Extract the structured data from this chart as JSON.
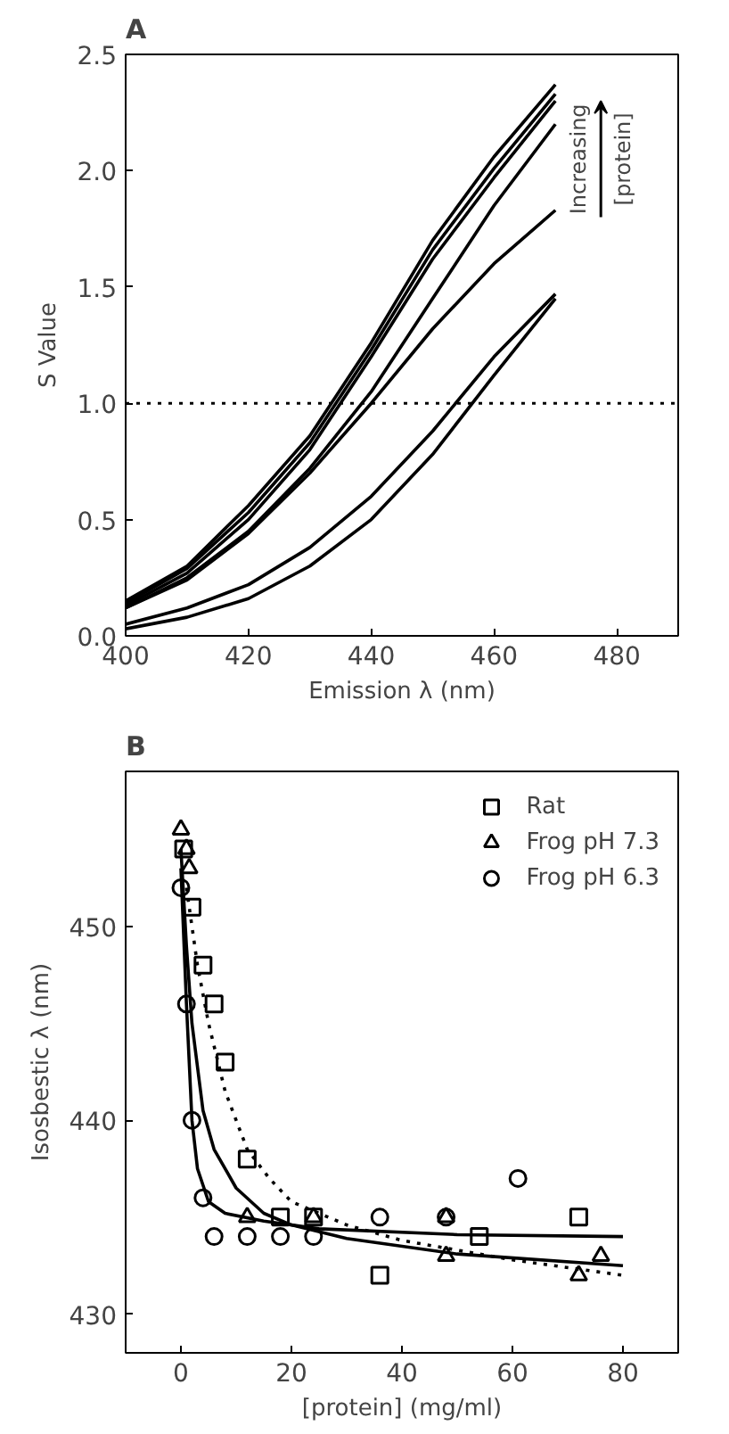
{
  "chart_data": [
    {
      "type": "line",
      "title": "A",
      "xlabel": "Emission λ (nm)",
      "ylabel": "S Value",
      "xlim": [
        400,
        490
      ],
      "ylim": [
        0,
        2.5
      ],
      "xticks": [
        400,
        420,
        440,
        460,
        480
      ],
      "yticks": [
        {
          "value": 0,
          "label": "0.0"
        },
        0.5,
        {
          "value": 1,
          "label": "1.0"
        },
        1.5,
        {
          "value": 2,
          "label": "2.0"
        },
        2.5
      ],
      "grid": false,
      "legend": false,
      "marker": "none",
      "line_style": "solid",
      "x": [
        400,
        410,
        420,
        430,
        440,
        450,
        460,
        470
      ],
      "series": [
        {
          "color": "#000000",
          "values": [
            0.15,
            0.3,
            0.56,
            0.86,
            1.26,
            1.7,
            2.06,
            2.37
          ]
        },
        {
          "color": "#000000",
          "values": [
            0.14,
            0.29,
            0.53,
            0.83,
            1.23,
            1.66,
            2.01,
            2.33
          ]
        },
        {
          "color": "#000000",
          "values": [
            0.13,
            0.27,
            0.5,
            0.8,
            1.2,
            1.62,
            1.97,
            2.3
          ]
        },
        {
          "color": "#000000",
          "values": [
            0.12,
            0.25,
            0.45,
            0.72,
            1.05,
            1.45,
            1.85,
            2.2
          ]
        },
        {
          "color": "#000000",
          "values": [
            0.12,
            0.24,
            0.44,
            0.7,
            1.0,
            1.32,
            1.6,
            1.83
          ]
        },
        {
          "color": "#000000",
          "values": [
            0.05,
            0.12,
            0.22,
            0.38,
            0.6,
            0.88,
            1.2,
            1.47
          ]
        },
        {
          "color": "#000000",
          "values": [
            0.03,
            0.08,
            0.16,
            0.3,
            0.5,
            0.78,
            1.12,
            1.45
          ]
        }
      ],
      "ref_lines": [
        {
          "axis": "y",
          "value": 1,
          "line_style": "dotted",
          "color": "#000000"
        }
      ],
      "annotations": [
        "Increasing",
        "[protein]"
      ]
    },
    {
      "type": "scatter",
      "title": "B",
      "xlabel": "[protein] (mg/ml)",
      "ylabel": "Isosbestic λ (nm)",
      "xlim": [
        -10,
        90
      ],
      "ylim": [
        428,
        458
      ],
      "xticks": [
        0,
        20,
        40,
        60,
        80
      ],
      "yticks": [
        430,
        440,
        450
      ],
      "grid": false,
      "legend": "top right",
      "series": [
        {
          "name": "Rat",
          "color": "#000000",
          "marker": "square",
          "x": [
            0.5,
            2,
            4,
            6,
            8,
            12,
            18,
            24,
            36,
            54,
            72
          ],
          "values": [
            454,
            451,
            448,
            446,
            443,
            438,
            435,
            435,
            432,
            434,
            435
          ]
        },
        {
          "name": "Frog pH 7.3",
          "color": "#000000",
          "marker": "triangle",
          "x": [
            0,
            1,
            1.5,
            12,
            24,
            48,
            48,
            72,
            76
          ],
          "values": [
            455,
            454,
            453,
            435,
            435,
            433,
            435,
            432,
            433
          ]
        },
        {
          "name": "Frog pH 6.3",
          "color": "#000000",
          "marker": "circle",
          "x": [
            0,
            1,
            2,
            4,
            6,
            12,
            18,
            24,
            36,
            48,
            61
          ],
          "values": [
            452,
            446,
            440,
            436,
            434,
            434,
            434,
            434,
            435,
            435,
            437
          ]
        },
        {
          "type": "line",
          "color": "#000000",
          "marker": "none",
          "line_style": "solid",
          "x": [
            0,
            1,
            2,
            3,
            5,
            8,
            15,
            25,
            50,
            80
          ],
          "values": [
            453,
            446,
            440,
            437.5,
            435.8,
            435.2,
            434.8,
            434.4,
            434.1,
            434
          ]
        },
        {
          "type": "line",
          "color": "#000000",
          "marker": "none",
          "line_style": "solid",
          "x": [
            0,
            1,
            2,
            4,
            6,
            10,
            15,
            20,
            30,
            50,
            80
          ],
          "values": [
            454,
            449,
            445,
            440.5,
            438.5,
            436.5,
            435.2,
            434.6,
            433.9,
            433.1,
            432.5
          ]
        },
        {
          "type": "line",
          "color": "#000000",
          "marker": "none",
          "line_style": "dotted",
          "x": [
            1,
            3,
            5,
            8,
            12,
            16,
            20,
            30,
            40,
            60,
            80
          ],
          "values": [
            452,
            448,
            445,
            441.5,
            438.5,
            437,
            435.8,
            434.6,
            433.8,
            432.8,
            432
          ]
        }
      ]
    }
  ]
}
